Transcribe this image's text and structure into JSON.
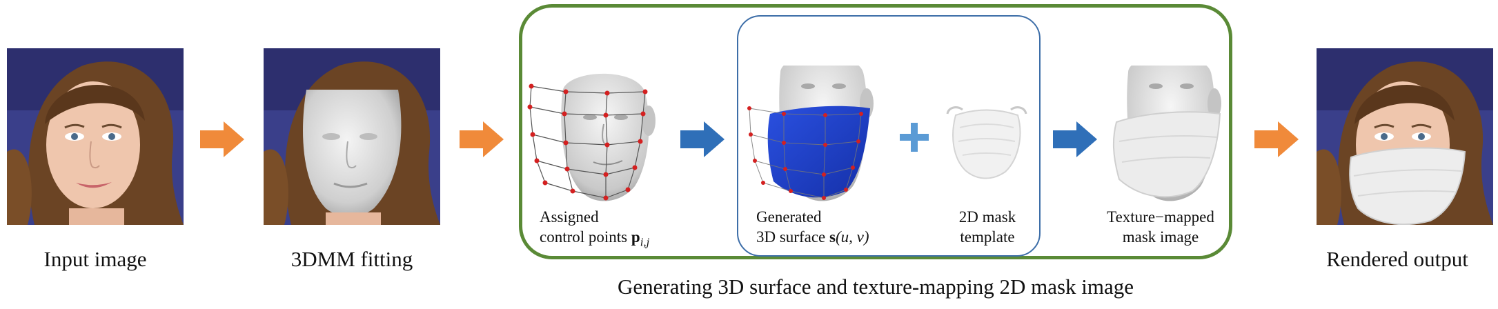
{
  "stages": {
    "input": {
      "label": "Input image"
    },
    "fitting": {
      "label": "3DMM fitting"
    },
    "control_points": {
      "line1": "Assigned",
      "line2": "control points ",
      "math": "p",
      "sub": "i,j"
    },
    "surface": {
      "line1": "Generated",
      "line2": "3D surface ",
      "math": "s",
      "args": "(u, v)"
    },
    "template": {
      "line1": "2D mask",
      "line2": "template"
    },
    "mapped": {
      "line1": "Texture−mapped",
      "line2": "mask image"
    },
    "output": {
      "label": "Rendered output"
    }
  },
  "group_caption": "Generating 3D surface and texture-mapping 2D mask image",
  "operators": {
    "plus": "+"
  },
  "colors": {
    "orange_arrow": "#f08a3a",
    "blue_arrow": "#2f6fb8",
    "plus": "#5b9bd5",
    "green_frame": "#5a8a36",
    "blue_frame": "#3d6ea8",
    "surface_blue": "#1f3fd0",
    "control_point_red": "#d42020"
  },
  "icons": [
    "arrow-right-icon",
    "plus-icon"
  ]
}
